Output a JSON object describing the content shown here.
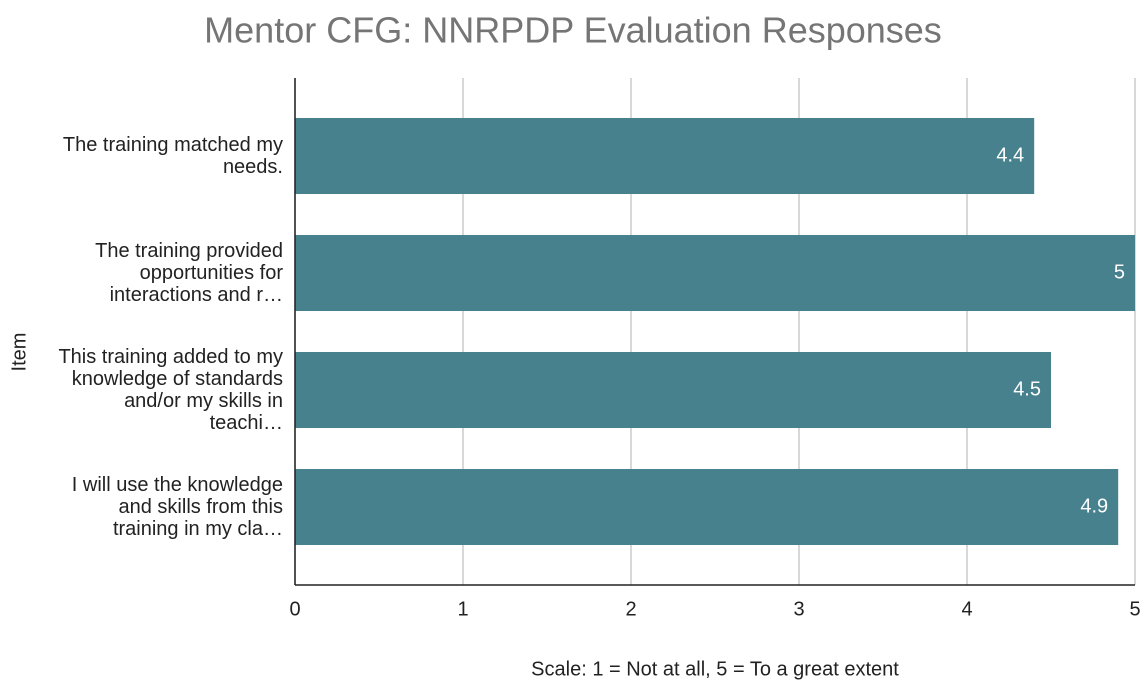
{
  "chart_data": {
    "type": "bar",
    "orientation": "horizontal",
    "title": "Mentor CFG: NNRPDP Evaluation Responses",
    "x_label": "Scale: 1 = Not at all, 5 = To a great extent",
    "y_label": "Item",
    "categories": [
      "The training matched my needs.",
      "The training provided opportunities for interactions and r…",
      "This training added to my knowledge of standards and/or my skills in teachi…",
      "I will use the knowledge and skills from this training in my cla…"
    ],
    "values": [
      4.4,
      5,
      4.5,
      4.9
    ],
    "color": "#47818e",
    "xlim": [
      0,
      5
    ],
    "xticks": [
      0,
      1,
      2,
      3,
      4,
      5
    ],
    "grid": true
  }
}
